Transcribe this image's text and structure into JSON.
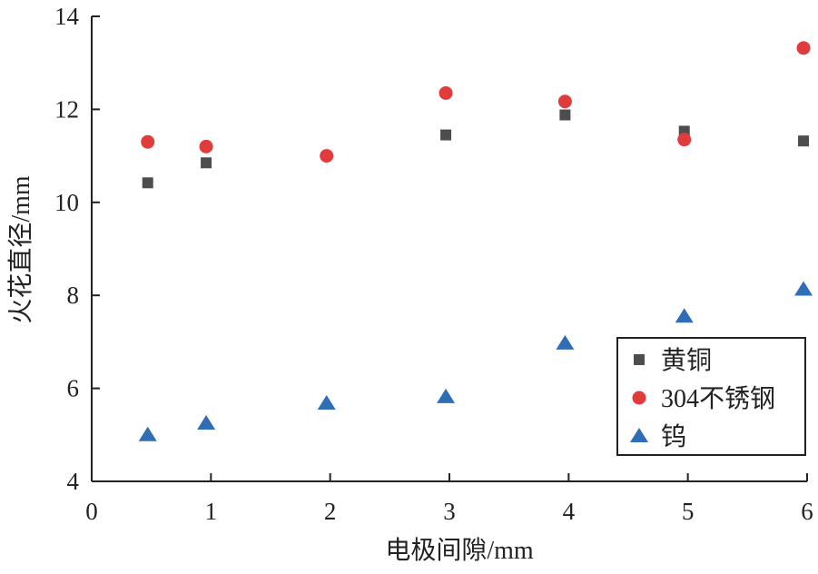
{
  "chart_data": {
    "type": "scatter",
    "title": "",
    "xlabel": "电极间隙/mm",
    "ylabel": "火花直径/mm",
    "xlim": [
      0,
      6
    ],
    "ylim": [
      4,
      14
    ],
    "xticks": [
      0,
      1,
      2,
      3,
      4,
      5,
      6
    ],
    "yticks": [
      4,
      6,
      8,
      10,
      12,
      14
    ],
    "grid": false,
    "legend_position": "bottom-right",
    "series": [
      {
        "name": "黄铜",
        "marker": "square",
        "color": "#4d4d4d",
        "x": [
          0.47,
          0.96,
          2.97,
          3.97,
          4.97,
          5.97
        ],
        "y": [
          10.42,
          10.85,
          11.45,
          11.88,
          11.53,
          11.32
        ]
      },
      {
        "name": "304不锈钢",
        "marker": "circle",
        "color": "#e03c3c",
        "x": [
          0.47,
          0.96,
          1.97,
          2.97,
          3.97,
          4.97,
          5.97
        ],
        "y": [
          11.3,
          11.2,
          11.0,
          12.35,
          12.17,
          11.35,
          13.32
        ]
      },
      {
        "name": "钨",
        "marker": "triangle",
        "color": "#2f6eb5",
        "x": [
          0.47,
          0.96,
          1.97,
          2.97,
          3.97,
          4.97,
          5.97
        ],
        "y": [
          5.0,
          5.25,
          5.68,
          5.82,
          6.97,
          7.55,
          8.13
        ]
      }
    ]
  }
}
